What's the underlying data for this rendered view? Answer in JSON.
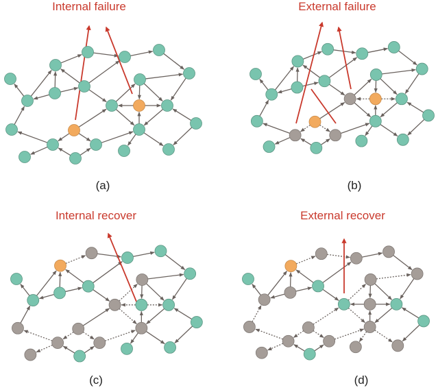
{
  "colors": {
    "healthy": "#79c4ae",
    "internal_failed": "#f2aa5e",
    "external_failed": "#a59d98",
    "edge": "#6a625e",
    "arrow": "#c9392c"
  },
  "panels": [
    {
      "id": "a",
      "title": "Internal failure",
      "label": "(a)",
      "node_states": [
        "h",
        "h",
        "h",
        "h",
        "h",
        "h",
        "h",
        "h",
        "h",
        "h",
        "h",
        "i",
        "h",
        "h",
        "i",
        "h",
        "h",
        "h",
        "h",
        "h",
        "h",
        "h",
        "h"
      ],
      "dashed_edges": []
    },
    {
      "id": "b",
      "title": "External failure",
      "label": "(b)",
      "node_states": [
        "h",
        "h",
        "h",
        "h",
        "h",
        "h",
        "h",
        "h",
        "h",
        "h",
        "e",
        "i",
        "h",
        "h",
        "i",
        "h",
        "h",
        "e",
        "e",
        "h",
        "h",
        "h",
        "h"
      ],
      "dashed_edges": [
        [
          12,
          11
        ],
        [
          12,
          13
        ],
        [
          15,
          18
        ],
        [
          15,
          19
        ]
      ]
    },
    {
      "id": "c",
      "title": "Internal recover",
      "label": "(c)",
      "node_states": [
        "e",
        "h",
        "h",
        "i",
        "h",
        "h",
        "e",
        "h",
        "h",
        "h",
        "e",
        "h",
        "h",
        "e",
        "e",
        "e",
        "h",
        "e",
        "e",
        "e",
        "h",
        "h",
        "h"
      ],
      "dashed_edges": [
        [
          4,
          1
        ],
        [
          12,
          11
        ],
        [
          12,
          13
        ],
        [
          11,
          7
        ],
        [
          11,
          16
        ],
        [
          18,
          14
        ],
        [
          18,
          20
        ],
        [
          15,
          18
        ],
        [
          15,
          19
        ],
        [
          19,
          16
        ]
      ]
    },
    {
      "id": "d",
      "title": "External recover",
      "label": "(d)",
      "node_states": [
        "e",
        "e",
        "e",
        "i",
        "e",
        "h",
        "e",
        "h",
        "e",
        "e",
        "h",
        "e",
        "h",
        "e",
        "e",
        "e",
        "h",
        "e",
        "e",
        "e",
        "h",
        "e",
        "e"
      ],
      "dashed_edges": [
        [
          4,
          1
        ],
        [
          1,
          2
        ],
        [
          7,
          5
        ],
        [
          11,
          7
        ],
        [
          11,
          16
        ],
        [
          11,
          15
        ],
        [
          14,
          10
        ],
        [
          18,
          14
        ],
        [
          18,
          20
        ],
        [
          15,
          18
        ],
        [
          15,
          19
        ],
        [
          19,
          16
        ],
        [
          16,
          22
        ],
        [
          16,
          23
        ]
      ]
    }
  ],
  "edges": [
    [
      2,
      3
    ],
    [
      4,
      1
    ],
    [
      1,
      2
    ],
    [
      3,
      5
    ],
    [
      7,
      5
    ],
    [
      5,
      13
    ],
    [
      9,
      4
    ],
    [
      8,
      4
    ],
    [
      9,
      10
    ],
    [
      9,
      8
    ],
    [
      8,
      2
    ],
    [
      8,
      11
    ],
    [
      10,
      4
    ],
    [
      10,
      6
    ],
    [
      14,
      10
    ],
    [
      18,
      14
    ],
    [
      15,
      11
    ],
    [
      15,
      18
    ],
    [
      15,
      19
    ],
    [
      18,
      20
    ],
    [
      21,
      18
    ],
    [
      21,
      19
    ],
    [
      19,
      16
    ],
    [
      11,
      16
    ],
    [
      16,
      12
    ],
    [
      16,
      22
    ],
    [
      16,
      23
    ],
    [
      12,
      13
    ],
    [
      12,
      11
    ],
    [
      7,
      12
    ],
    [
      7,
      13
    ],
    [
      13,
      16
    ],
    [
      17,
      13
    ],
    [
      17,
      23
    ],
    [
      11,
      7
    ]
  ]
}
